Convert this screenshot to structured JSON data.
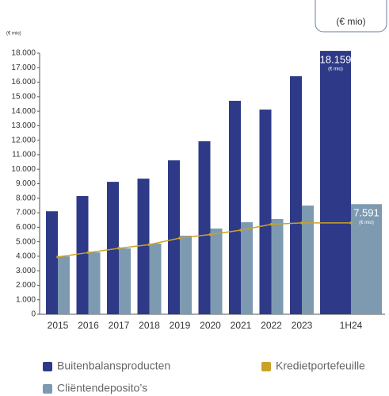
{
  "chart_data": {
    "type": "bar",
    "header_label": "(€ mio)",
    "axis_unit_label": "(€ mio)",
    "categories": [
      "2015",
      "2016",
      "2017",
      "2018",
      "2019",
      "2020",
      "2021",
      "2022",
      "2023",
      "1H24"
    ],
    "series": [
      {
        "name": "Buitenbalansproducten",
        "type": "bar",
        "color": "#2e3a87",
        "values": [
          7100,
          8150,
          9130,
          9350,
          10610,
          11925,
          14715,
          14110,
          16410,
          18159
        ],
        "value_labels": [
          null,
          null,
          null,
          null,
          null,
          null,
          null,
          null,
          null,
          "18.159"
        ],
        "value_label_unit": "(€ mio)"
      },
      {
        "name": "Cliëntendeposito’s",
        "type": "bar",
        "color": "#7d9ab0",
        "values": [
          3990,
          4270,
          4540,
          4870,
          5415,
          5910,
          6345,
          6565,
          7495,
          7591
        ],
        "value_labels": [
          null,
          null,
          null,
          null,
          null,
          null,
          null,
          null,
          null,
          "7.591"
        ],
        "value_label_unit": "(€ mio)"
      },
      {
        "name": "Kredietportefeuille",
        "type": "line",
        "color": "#c9a227",
        "values": [
          3950,
          4250,
          4550,
          4800,
          5250,
          5500,
          5800,
          6200,
          6300,
          6300
        ]
      }
    ],
    "ylim": [
      0,
      18000
    ],
    "yticks": [
      0,
      {
        "value": 1000,
        "label": "1.000"
      },
      {
        "value": 2000,
        "label": "2.000"
      },
      {
        "value": 3000,
        "label": "3.000"
      },
      {
        "value": 4000,
        "label": "4.000"
      },
      {
        "value": 5000,
        "label": "5.000"
      },
      {
        "value": 6000,
        "label": "6.000"
      },
      {
        "value": 7000,
        "label": "7.000"
      },
      {
        "value": 8000,
        "label": "8.000"
      },
      {
        "value": 9000,
        "label": "9.000"
      },
      {
        "value": 10000,
        "label": "10.000"
      },
      {
        "value": 11000,
        "label": "11.000"
      },
      {
        "value": 12000,
        "label": "12.000"
      },
      {
        "value": 13000,
        "label": "13.000"
      },
      {
        "value": 14000,
        "label": "14.000"
      },
      {
        "value": 15000,
        "label": "15.000"
      },
      {
        "value": 16000,
        "label": "16.000"
      },
      {
        "value": 17000,
        "label": "17.000"
      },
      {
        "value": 18000,
        "label": "18.000"
      }
    ],
    "grid": false
  }
}
